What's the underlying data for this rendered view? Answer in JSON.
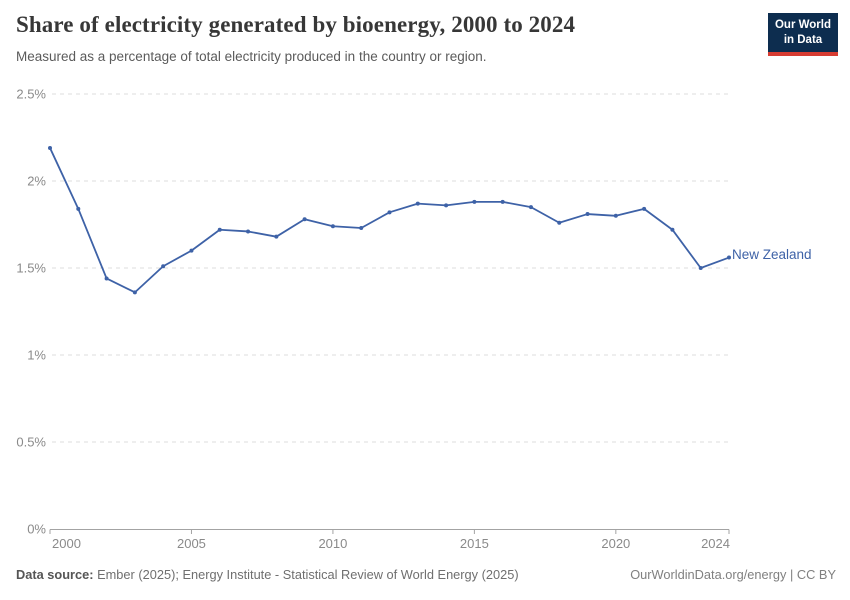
{
  "page": {
    "title": "Share of electricity generated by bioenergy, 2000 to 2024",
    "subtitle": "Measured as a percentage of total electricity produced in the country or region."
  },
  "logo": {
    "line1": "Our World",
    "line2": "in Data",
    "bg_color": "#0d2d4f",
    "accent_color": "#d73c32",
    "text_color": "#ffffff"
  },
  "chart_data": {
    "type": "line",
    "title": "Share of electricity generated by bioenergy, 2000 to 2024",
    "subtitle": "Measured as a percentage of total electricity produced in the country or region.",
    "unit": "%",
    "x": [
      2000,
      2001,
      2002,
      2003,
      2004,
      2005,
      2006,
      2007,
      2008,
      2009,
      2010,
      2011,
      2012,
      2013,
      2014,
      2015,
      2016,
      2017,
      2018,
      2019,
      2020,
      2021,
      2022,
      2023,
      2024
    ],
    "series": [
      {
        "name": "New Zealand",
        "color": "#3e62a7",
        "values": [
          2.19,
          1.84,
          1.44,
          1.36,
          1.51,
          1.6,
          1.72,
          1.71,
          1.68,
          1.78,
          1.74,
          1.73,
          1.82,
          1.87,
          1.86,
          1.88,
          1.88,
          1.85,
          1.76,
          1.81,
          1.8,
          1.84,
          1.72,
          1.5,
          1.56
        ]
      }
    ],
    "xlim": [
      2000,
      2024
    ],
    "ylim": [
      0,
      2.5
    ],
    "x_ticks": [
      2000,
      2005,
      2010,
      2015,
      2020,
      2024
    ],
    "y_ticks": [
      {
        "value": 0,
        "label": "0%"
      },
      {
        "value": 0.5,
        "label": "0.5%"
      },
      {
        "value": 1,
        "label": "1%"
      },
      {
        "value": 1.5,
        "label": "1.5%"
      },
      {
        "value": 2,
        "label": "2%"
      },
      {
        "value": 2.5,
        "label": "2.5%"
      }
    ],
    "grid": "horizontal-dashed",
    "legend_position": "end-of-line-label",
    "colors": {
      "grid": "#dcdcdc",
      "axis": "#a3a3a3",
      "tick_label": "#8a8a8a"
    }
  },
  "footer": {
    "source_label": "Data source:",
    "source_text": "Ember (2025); Energy Institute - Statistical Review of World Energy (2025)",
    "link_text": "OurWorldinData.org/energy",
    "separator": "|",
    "license_text": "CC BY"
  }
}
